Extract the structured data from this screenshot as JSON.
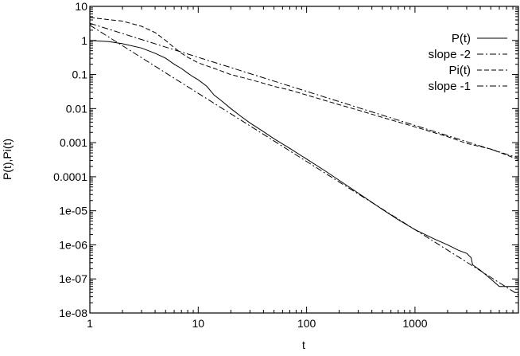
{
  "chart_data": {
    "type": "line",
    "xlabel": "t",
    "ylabel": "P(t),Pi(t)",
    "xscale": "log",
    "yscale": "log",
    "xlim": [
      1,
      9000
    ],
    "ylim": [
      1e-08,
      10
    ],
    "grid": false,
    "legend_position": "top-right",
    "x_ticks": [
      {
        "value": 1,
        "label": "1"
      },
      {
        "value": 10,
        "label": "10"
      },
      {
        "value": 100,
        "label": "100"
      },
      {
        "value": 1000,
        "label": "1000"
      }
    ],
    "y_ticks": [
      {
        "value": 10,
        "label": "10"
      },
      {
        "value": 1,
        "label": "1"
      },
      {
        "value": 0.1,
        "label": "0.1"
      },
      {
        "value": 0.01,
        "label": "0.01"
      },
      {
        "value": 0.001,
        "label": "0.001"
      },
      {
        "value": 0.0001,
        "label": "0.0001"
      },
      {
        "value": 1e-05,
        "label": "1e-05"
      },
      {
        "value": 1e-06,
        "label": "1e-06"
      },
      {
        "value": 1e-07,
        "label": "1e-07"
      },
      {
        "value": 1e-08,
        "label": "1e-08"
      }
    ],
    "series": [
      {
        "name": "P(t)",
        "dash": "solid",
        "x": [
          1,
          1.5,
          2,
          3,
          4,
          5,
          6,
          7,
          8,
          9,
          10,
          12,
          14,
          16,
          20,
          25,
          30,
          40,
          50,
          70,
          100,
          150,
          200,
          300,
          500,
          700,
          1000,
          1500,
          2000,
          2500,
          3000,
          3300,
          3400,
          4000,
          5000,
          6000,
          9000
        ],
        "y": [
          1.0,
          0.92,
          0.8,
          0.6,
          0.42,
          0.3,
          0.2,
          0.15,
          0.11,
          0.085,
          0.07,
          0.045,
          0.025,
          0.018,
          0.01,
          0.0058,
          0.0038,
          0.0021,
          0.0013,
          0.00068,
          0.00033,
          0.000145,
          7.8e-05,
          3.3e-05,
          1.1e-05,
          5.5e-06,
          2.8e-06,
          1.5e-06,
          1e-06,
          7e-07,
          5.6e-07,
          4.2e-07,
          2.6e-07,
          1.8e-07,
          1e-07,
          6e-08,
          6e-08
        ]
      },
      {
        "name": "slope -2",
        "dash": "dashdot",
        "x": [
          1,
          9000
        ],
        "y": [
          2.8,
          3.45e-08
        ]
      },
      {
        "name": "Pi(t)",
        "dash": "dashed",
        "x": [
          1,
          2,
          3,
          4,
          5,
          6,
          7,
          8,
          10,
          15,
          20,
          30,
          50,
          70,
          100,
          200,
          300,
          500,
          1000,
          2000,
          3000,
          5000,
          9000
        ],
        "y": [
          4.7,
          3.7,
          2.6,
          1.7,
          1.0,
          0.62,
          0.42,
          0.32,
          0.22,
          0.14,
          0.1,
          0.072,
          0.045,
          0.035,
          0.025,
          0.013,
          0.009,
          0.0055,
          0.0029,
          0.0015,
          0.00095,
          0.00065,
          0.00032
        ]
      },
      {
        "name": "slope -1",
        "dash": "dashdot",
        "x": [
          1,
          9000
        ],
        "y": [
          3.2,
          0.000356
        ]
      }
    ]
  }
}
